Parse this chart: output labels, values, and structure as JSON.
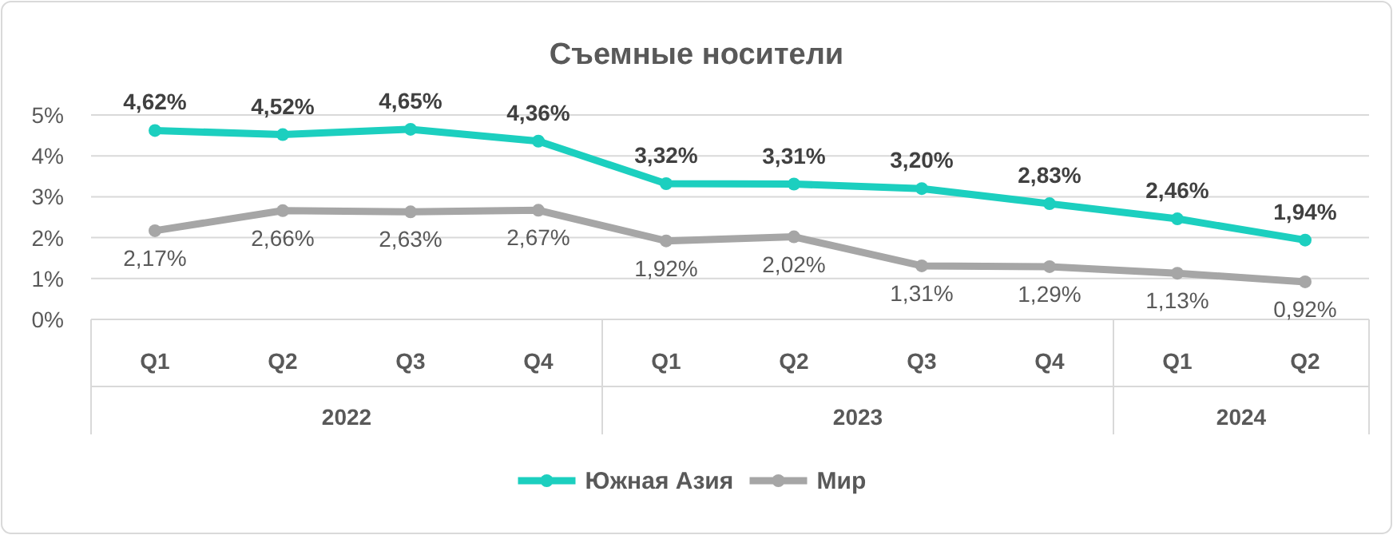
{
  "chart_data": {
    "type": "line",
    "title": "Съемные носители",
    "categories": [
      "Q1",
      "Q2",
      "Q3",
      "Q4",
      "Q1",
      "Q2",
      "Q3",
      "Q4",
      "Q1",
      "Q2"
    ],
    "annotations": [
      "2022",
      "2023",
      "2024"
    ],
    "series": [
      {
        "name": "Южная Азия",
        "color": "#1ccfbf",
        "values": [
          4.62,
          4.52,
          4.65,
          4.36,
          3.32,
          3.31,
          3.2,
          2.83,
          2.46,
          1.94
        ],
        "value_labels": [
          "4,62%",
          "4,52%",
          "4,65%",
          "4,36%",
          "3,32%",
          "3,31%",
          "3,20%",
          "2,83%",
          "2,46%",
          "1,94%"
        ]
      },
      {
        "name": "Мир",
        "color": "#a6a6a6",
        "values": [
          2.17,
          2.66,
          2.63,
          2.67,
          1.92,
          2.02,
          1.31,
          1.29,
          1.13,
          0.92
        ],
        "value_labels": [
          "2,17%",
          "2,66%",
          "2,63%",
          "2,67%",
          "1,92%",
          "2,02%",
          "1,31%",
          "1,29%",
          "1,13%",
          "0,92%"
        ]
      }
    ],
    "ylim": [
      0,
      5
    ],
    "yticks": [
      {
        "value": 0,
        "label": "0%"
      },
      {
        "value": 1,
        "label": "1%"
      },
      {
        "value": 2,
        "label": "2%"
      },
      {
        "value": 3,
        "label": "3%"
      },
      {
        "value": 4,
        "label": "4%"
      },
      {
        "value": 5,
        "label": "5%"
      }
    ],
    "grid": "y",
    "legend": "bottom",
    "marker": "circle",
    "line_style": "solid"
  }
}
